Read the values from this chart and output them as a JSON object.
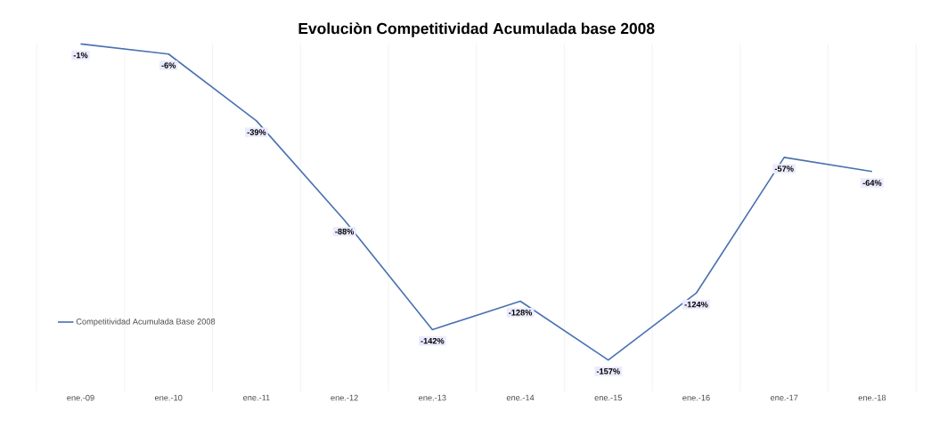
{
  "chart_data": {
    "type": "line",
    "title": "Evoluciòn Competitividad Acumulada base 2008",
    "categories": [
      "ene.-09",
      "ene.-10",
      "ene.-11",
      "ene.-12",
      "ene.-13",
      "ene.-14",
      "ene.-15",
      "ene.-16",
      "ene.-17",
      "ene.-18"
    ],
    "series": [
      {
        "name": "Competitividad Acumulada Base 2008",
        "color": "#4a72b0",
        "values": [
          -1,
          -6,
          -39,
          -88,
          -142,
          -128,
          -157,
          -124,
          -57,
          -64
        ],
        "value_labels": [
          "-1%",
          "-6%",
          "-39%",
          "-88%",
          "-142%",
          "-128%",
          "-157%",
          "-124%",
          "-57%",
          "-64%"
        ]
      }
    ],
    "grid": "x",
    "legend": "left",
    "marker": "none",
    "line_style": "solid"
  }
}
